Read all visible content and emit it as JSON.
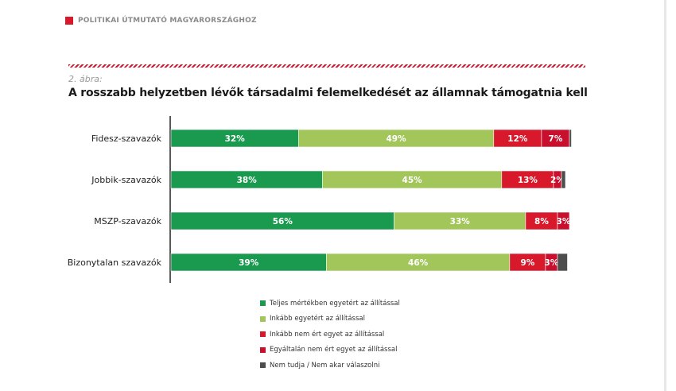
{
  "header": {
    "text": "POLITIKAI ÚTMUTATÓ MAGYARORSZÁGHOZ",
    "accent": "#d7192b"
  },
  "figure": {
    "label": "2. ábra:",
    "title": "A rosszabb helyzetben lévők társadalmi felemelkedését az államnak támogatnia kell"
  },
  "chart_data": {
    "type": "bar",
    "orientation": "horizontal",
    "stacked": true,
    "categories": [
      "Fidesz-szavazók",
      "Jobbik-szavazók",
      "MSZP-szavazók",
      "Bizonytalan szavazók"
    ],
    "series": [
      {
        "name": "Teljes mértékben egyetért az állítással",
        "color": "#1a9a4f",
        "values": [
          32,
          38,
          56,
          39
        ],
        "labels": [
          "32%",
          "38%",
          "56%",
          "39%"
        ]
      },
      {
        "name": "Inkább egyetért az állítással",
        "color": "#a3c65a",
        "values": [
          49,
          45,
          33,
          46
        ],
        "labels": [
          "49%",
          "45%",
          "33%",
          "46%"
        ]
      },
      {
        "name": "Inkább nem ért egyet az állítással",
        "color": "#d7192b",
        "values": [
          12,
          13,
          8,
          9
        ],
        "labels": [
          "12%",
          "13%",
          "8%",
          "9%"
        ]
      },
      {
        "name": "Egyáltalán nem ért egyet az állítással",
        "color": "#c8102e",
        "values": [
          7,
          2,
          3,
          3
        ],
        "labels": [
          "7%",
          "2%",
          "3%",
          "3%"
        ]
      },
      {
        "name": "Nem tudja / Nem akar válaszolni",
        "color": "#4d4d4d",
        "values": [
          0.5,
          1,
          0,
          2.5
        ],
        "labels": [
          "",
          "",
          "",
          ""
        ]
      }
    ],
    "xlim": [
      0,
      100
    ],
    "grid": false,
    "legend_position": "bottom"
  }
}
